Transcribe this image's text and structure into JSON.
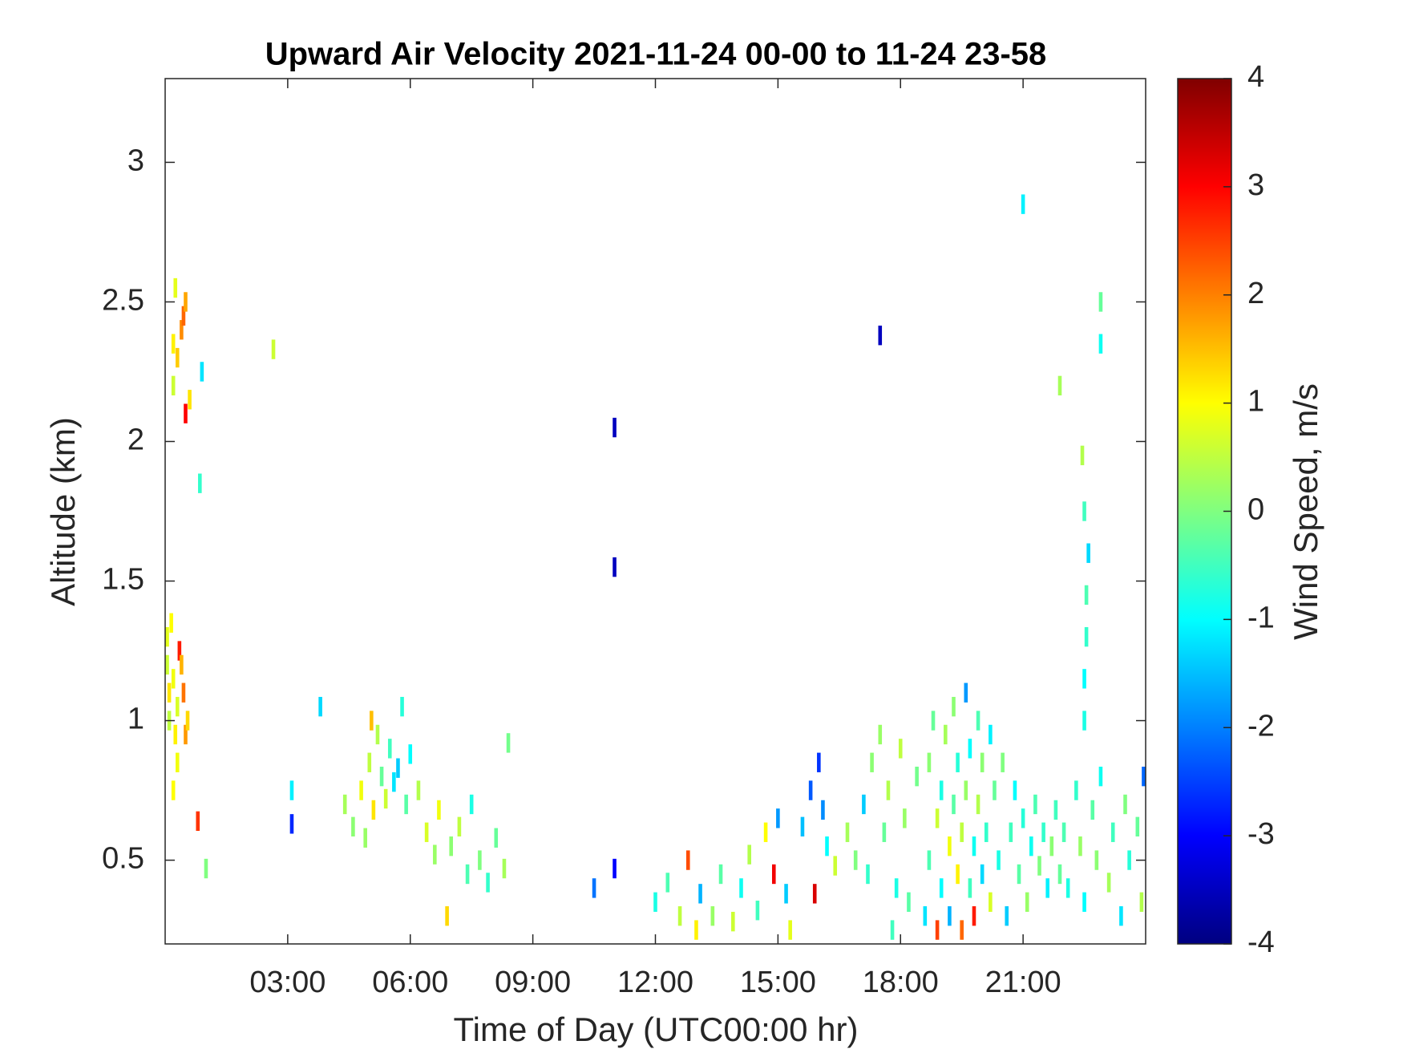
{
  "chart_data": {
    "type": "heatmap",
    "title": "Upward Air Velocity 2021-11-24 00-00 to 11-24 23-58",
    "xlabel": "Time of Day (UTC00:00 hr)",
    "ylabel": "Altitude (km)",
    "colorbar_label": "Wind Speed, m/s",
    "colormap": "jet",
    "xlim": [
      0,
      24
    ],
    "xticks": [
      {
        "value": 3,
        "label": "03:00"
      },
      {
        "value": 6,
        "label": "06:00"
      },
      {
        "value": 9,
        "label": "09:00"
      },
      {
        "value": 12,
        "label": "12:00"
      },
      {
        "value": 15,
        "label": "15:00"
      },
      {
        "value": 18,
        "label": "18:00"
      },
      {
        "value": 21,
        "label": "21:00"
      }
    ],
    "ylim": [
      0.2,
      3.3
    ],
    "yticks": [
      0.5,
      1,
      1.5,
      2,
      2.5,
      3
    ],
    "clim": [
      -4,
      4
    ],
    "cticks": [
      -4,
      -3,
      -2,
      -1,
      0,
      1,
      2,
      3,
      4
    ],
    "points": [
      [
        0.05,
        1.3,
        0.8
      ],
      [
        0.05,
        1.2,
        0.6
      ],
      [
        0.1,
        1.1,
        1.2
      ],
      [
        0.1,
        1.0,
        0.5
      ],
      [
        0.15,
        1.35,
        1.0
      ],
      [
        0.2,
        1.15,
        0.9
      ],
      [
        0.25,
        0.95,
        1.1
      ],
      [
        0.3,
        1.05,
        0.7
      ],
      [
        0.35,
        1.25,
        2.8
      ],
      [
        0.4,
        1.2,
        1.6
      ],
      [
        0.45,
        1.1,
        2.1
      ],
      [
        0.5,
        0.95,
        1.8
      ],
      [
        0.3,
        0.85,
        0.9
      ],
      [
        0.2,
        0.75,
        1.0
      ],
      [
        0.55,
        1.0,
        1.3
      ],
      [
        0.2,
        2.35,
        1.1
      ],
      [
        0.25,
        2.55,
        0.8
      ],
      [
        0.3,
        2.3,
        1.4
      ],
      [
        0.4,
        2.4,
        1.9
      ],
      [
        0.45,
        2.45,
        2.2
      ],
      [
        0.5,
        2.1,
        3.0
      ],
      [
        0.5,
        2.5,
        1.7
      ],
      [
        0.6,
        2.15,
        1.2
      ],
      [
        0.85,
        1.85,
        -0.6
      ],
      [
        0.9,
        2.25,
        -1.2
      ],
      [
        0.2,
        2.2,
        0.6
      ],
      [
        2.65,
        2.33,
        0.6
      ],
      [
        3.1,
        0.75,
        -1.1
      ],
      [
        3.1,
        0.63,
        -2.7
      ],
      [
        3.8,
        1.05,
        -1.3
      ],
      [
        1.0,
        0.47,
        0.0
      ],
      [
        0.8,
        0.64,
        2.6
      ],
      [
        4.4,
        0.7,
        0.3
      ],
      [
        4.6,
        0.62,
        0.1
      ],
      [
        4.8,
        0.75,
        0.9
      ],
      [
        5.0,
        0.85,
        0.5
      ],
      [
        5.1,
        0.68,
        1.2
      ],
      [
        5.2,
        0.95,
        0.4
      ],
      [
        5.3,
        0.8,
        -0.2
      ],
      [
        5.4,
        0.72,
        0.6
      ],
      [
        5.5,
        0.9,
        -0.5
      ],
      [
        5.6,
        0.78,
        -1.2
      ],
      [
        5.7,
        0.83,
        -1.4
      ],
      [
        5.8,
        1.05,
        -0.7
      ],
      [
        5.9,
        0.7,
        -0.3
      ],
      [
        6.0,
        0.88,
        -1.0
      ],
      [
        6.2,
        0.75,
        0.4
      ],
      [
        5.05,
        1.0,
        1.5
      ],
      [
        4.9,
        0.58,
        0.2
      ],
      [
        6.4,
        0.6,
        0.7
      ],
      [
        6.6,
        0.52,
        0.2
      ],
      [
        6.7,
        0.68,
        0.9
      ],
      [
        6.9,
        0.3,
        1.3
      ],
      [
        7.0,
        0.55,
        0.1
      ],
      [
        7.2,
        0.62,
        0.5
      ],
      [
        7.4,
        0.45,
        -0.4
      ],
      [
        7.5,
        0.7,
        -0.8
      ],
      [
        7.7,
        0.5,
        0.0
      ],
      [
        7.9,
        0.42,
        -0.6
      ],
      [
        8.1,
        0.58,
        -0.2
      ],
      [
        8.3,
        0.47,
        0.3
      ],
      [
        8.4,
        0.92,
        -0.1
      ],
      [
        10.5,
        0.4,
        -2.1
      ],
      [
        11.0,
        2.05,
        -3.5
      ],
      [
        11.0,
        1.55,
        -3.5
      ],
      [
        11.0,
        0.47,
        -3.0
      ],
      [
        17.5,
        2.38,
        -3.5
      ],
      [
        21.0,
        2.85,
        -1.1
      ],
      [
        21.9,
        2.2,
        0.3
      ],
      [
        12.0,
        0.35,
        -0.8
      ],
      [
        12.3,
        0.42,
        -0.4
      ],
      [
        12.6,
        0.3,
        0.5
      ],
      [
        12.8,
        0.5,
        2.4
      ],
      [
        13.0,
        0.25,
        1.1
      ],
      [
        13.1,
        0.38,
        -1.6
      ],
      [
        13.4,
        0.3,
        0.2
      ],
      [
        13.6,
        0.45,
        -0.3
      ],
      [
        13.9,
        0.28,
        0.6
      ],
      [
        14.1,
        0.4,
        -0.9
      ],
      [
        14.3,
        0.52,
        0.4
      ],
      [
        14.5,
        0.32,
        -0.5
      ],
      [
        14.7,
        0.6,
        1.0
      ],
      [
        14.9,
        0.45,
        3.1
      ],
      [
        15.0,
        0.65,
        -1.8
      ],
      [
        15.2,
        0.38,
        -1.4
      ],
      [
        15.3,
        0.25,
        0.8
      ],
      [
        15.6,
        0.62,
        -1.5
      ],
      [
        15.8,
        0.75,
        -2.3
      ],
      [
        16.0,
        0.85,
        -2.6
      ],
      [
        16.1,
        0.68,
        -1.9
      ],
      [
        16.2,
        0.55,
        -1.0
      ],
      [
        16.4,
        0.48,
        0.6
      ],
      [
        15.9,
        0.38,
        3.3
      ],
      [
        16.7,
        0.6,
        0.3
      ],
      [
        16.9,
        0.5,
        0.0
      ],
      [
        17.1,
        0.7,
        -1.4
      ],
      [
        17.2,
        0.45,
        -0.6
      ],
      [
        17.3,
        0.85,
        0.1
      ],
      [
        17.5,
        0.95,
        0.2
      ],
      [
        17.6,
        0.6,
        -0.2
      ],
      [
        17.7,
        0.75,
        0.4
      ],
      [
        17.9,
        0.4,
        -0.8
      ],
      [
        18.0,
        0.9,
        0.5
      ],
      [
        18.1,
        0.65,
        0.2
      ],
      [
        18.2,
        0.35,
        -0.3
      ],
      [
        18.4,
        0.8,
        -0.1
      ],
      [
        17.8,
        0.25,
        -0.5
      ],
      [
        18.6,
        0.3,
        -1.2
      ],
      [
        18.7,
        0.5,
        -0.4
      ],
      [
        18.7,
        0.85,
        0.1
      ],
      [
        18.8,
        1.0,
        -0.2
      ],
      [
        18.9,
        0.65,
        0.6
      ],
      [
        18.9,
        0.25,
        2.5
      ],
      [
        19.0,
        0.4,
        -1.0
      ],
      [
        19.0,
        0.75,
        -0.8
      ],
      [
        19.1,
        0.95,
        0.3
      ],
      [
        19.2,
        0.55,
        0.9
      ],
      [
        19.2,
        0.3,
        -1.6
      ],
      [
        19.3,
        0.7,
        -0.3
      ],
      [
        19.3,
        1.05,
        0.1
      ],
      [
        19.4,
        0.45,
        1.1
      ],
      [
        19.4,
        0.85,
        -0.7
      ],
      [
        19.5,
        0.6,
        0.5
      ],
      [
        19.5,
        0.25,
        2.2
      ],
      [
        19.6,
        1.1,
        -1.8
      ],
      [
        19.6,
        0.75,
        0.2
      ],
      [
        19.7,
        0.4,
        -0.5
      ],
      [
        19.7,
        0.9,
        -1.0
      ],
      [
        19.8,
        0.55,
        -0.9
      ],
      [
        19.8,
        0.3,
        2.8
      ],
      [
        19.9,
        0.7,
        0.4
      ],
      [
        19.9,
        1.0,
        -0.4
      ],
      [
        20.0,
        0.45,
        -1.3
      ],
      [
        20.0,
        0.85,
        0.1
      ],
      [
        20.1,
        0.6,
        -0.6
      ],
      [
        20.2,
        0.35,
        0.7
      ],
      [
        20.2,
        0.95,
        -1.1
      ],
      [
        20.3,
        0.75,
        -0.2
      ],
      [
        20.4,
        0.5,
        -0.8
      ],
      [
        20.5,
        0.85,
        0.0
      ],
      [
        20.6,
        0.3,
        -1.4
      ],
      [
        20.7,
        0.6,
        -0.5
      ],
      [
        20.8,
        0.75,
        -1.0
      ],
      [
        20.9,
        0.45,
        -0.3
      ],
      [
        21.0,
        0.65,
        -0.7
      ],
      [
        21.1,
        0.35,
        0.2
      ],
      [
        21.2,
        0.55,
        -0.9
      ],
      [
        21.3,
        0.7,
        -0.4
      ],
      [
        21.4,
        0.48,
        0.0
      ],
      [
        21.5,
        0.6,
        -0.6
      ],
      [
        21.6,
        0.4,
        -1.1
      ],
      [
        21.7,
        0.55,
        0.1
      ],
      [
        21.8,
        0.68,
        -0.5
      ],
      [
        21.9,
        0.45,
        -0.2
      ],
      [
        22.0,
        0.6,
        -0.4
      ],
      [
        22.1,
        0.4,
        -0.8
      ],
      [
        22.3,
        0.75,
        -0.6
      ],
      [
        22.4,
        0.55,
        0.2
      ],
      [
        22.5,
        0.35,
        -1.0
      ],
      [
        22.7,
        0.68,
        -0.3
      ],
      [
        22.8,
        0.5,
        0.1
      ],
      [
        22.9,
        0.8,
        -0.9
      ],
      [
        23.1,
        0.42,
        0.3
      ],
      [
        23.2,
        0.6,
        -0.5
      ],
      [
        23.4,
        0.3,
        -1.2
      ],
      [
        23.5,
        0.7,
        0.0
      ],
      [
        23.6,
        0.5,
        -0.7
      ],
      [
        23.8,
        0.62,
        -0.2
      ],
      [
        23.9,
        0.35,
        0.4
      ],
      [
        23.95,
        0.8,
        -2.2
      ],
      [
        22.5,
        1.0,
        -0.8
      ],
      [
        22.5,
        1.15,
        -1.0
      ],
      [
        22.55,
        1.3,
        -0.6
      ],
      [
        22.55,
        1.45,
        -0.4
      ],
      [
        22.6,
        1.6,
        -1.3
      ],
      [
        22.5,
        1.75,
        -0.5
      ],
      [
        22.45,
        1.95,
        0.4
      ],
      [
        22.9,
        2.35,
        -0.9
      ],
      [
        22.9,
        2.5,
        -0.2
      ]
    ]
  }
}
